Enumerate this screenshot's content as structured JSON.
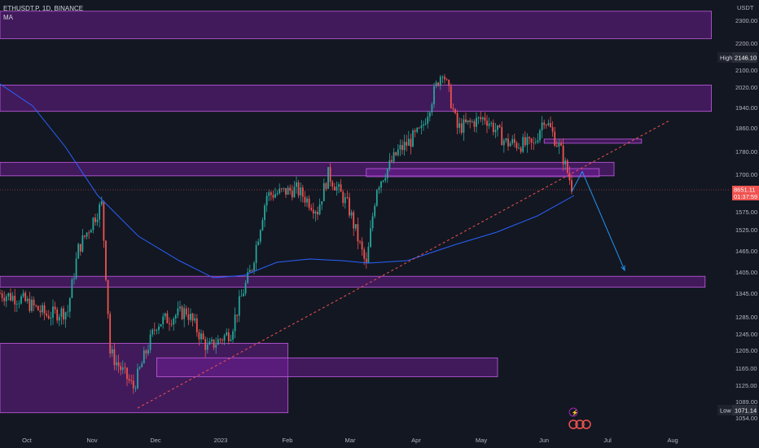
{
  "legend": {
    "symbol": "ETHUSDT.P, 1D, BINANCE",
    "indicator": "MA"
  },
  "price_axis": {
    "currency": "USDT",
    "ticks": [
      "2300.00",
      "2200.00",
      "2100.00",
      "2020.00",
      "1940.00",
      "1860.00",
      "1780.00",
      "1700.00",
      "1575.00",
      "1525.00",
      "1465.00",
      "1405.00",
      "1345.00",
      "1285.00",
      "1245.00",
      "1205.00",
      "1165.00",
      "1125.00",
      "1089.00",
      "1054.00"
    ],
    "high_label": "High",
    "high_value": "2146.10",
    "low_label": "Low",
    "low_value": "1071.14",
    "last_price": "8651.11",
    "countdown": "01:37:59"
  },
  "time_axis": {
    "ticks": [
      "Oct",
      "Nov",
      "Dec",
      "2023",
      "Feb",
      "Mar",
      "Apr",
      "May",
      "Jun",
      "Jul",
      "Aug"
    ]
  },
  "colors": {
    "background": "#131722",
    "up": "#26a69a",
    "down": "#ef5350",
    "zone_fill": "#7b1fa2",
    "zone_border": "#c05de0",
    "ma_line": "#2962ff",
    "projection": "#2196f3",
    "trendline": "#ef5350"
  },
  "chart_data": {
    "type": "candlestick",
    "title": "ETHUSDT.P, 1D, BINANCE",
    "indicators": [
      "MA"
    ],
    "x_range": [
      "2022-09-18",
      "2023-08-20"
    ],
    "ylim": [
      1040,
      2340
    ],
    "high": 2146.1,
    "low": 1071.14,
    "zones": [
      {
        "from_date": "2022-09-18",
        "to_date": "2023-08-20",
        "low": 2220,
        "high": 2340
      },
      {
        "from_date": "2022-09-18",
        "to_date": "2023-08-20",
        "low": 1925,
        "high": 2030
      },
      {
        "from_date": "2022-09-18",
        "to_date": "2023-07-05",
        "low": 1695,
        "high": 1742
      },
      {
        "from_date": "2023-03-10",
        "to_date": "2023-06-28",
        "low": 1692,
        "high": 1720
      },
      {
        "from_date": "2023-06-02",
        "to_date": "2023-07-18",
        "low": 1808,
        "high": 1822
      },
      {
        "from_date": "2022-09-18",
        "to_date": "2023-08-17",
        "low": 1362,
        "high": 1393
      },
      {
        "from_date": "2022-09-18",
        "to_date": "2023-02-01",
        "low": 1065,
        "high": 1222
      },
      {
        "from_date": "2022-12-01",
        "to_date": "2023-05-11",
        "low": 1145,
        "high": 1188
      }
    ],
    "trendline": {
      "from": {
        "date": "2022-11-22",
        "price": 1075
      },
      "to": {
        "date": "2023-07-31",
        "price": 1888
      }
    },
    "projection": [
      {
        "date": "2023-06-15",
        "price": 1642
      },
      {
        "date": "2023-06-20",
        "price": 1710
      },
      {
        "date": "2023-07-10",
        "price": 1410
      }
    ]
  }
}
